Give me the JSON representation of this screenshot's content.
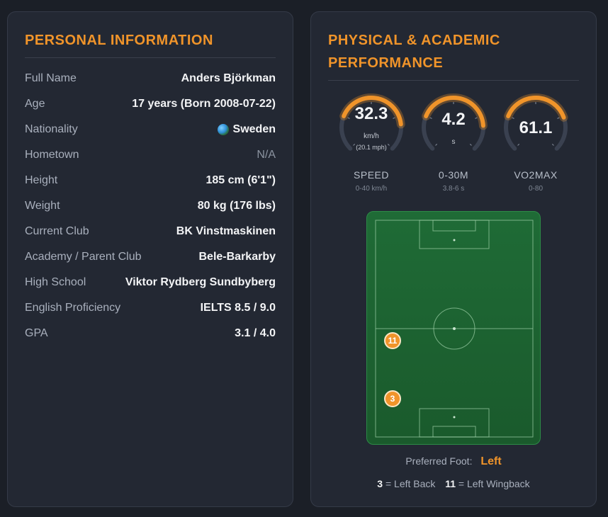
{
  "personal": {
    "title": "PERSONAL INFORMATION",
    "rows": [
      {
        "label": "Full Name",
        "value": "Anders Björkman"
      },
      {
        "label": "Age",
        "value": "17 years (Born 2008-07-22)"
      },
      {
        "label": "Nationality",
        "value": "Sweden",
        "icon": "globe-icon"
      },
      {
        "label": "Hometown",
        "value": "N/A"
      },
      {
        "label": "Height",
        "value": "185 cm (6'1\")"
      },
      {
        "label": "Weight",
        "value": "80 kg (176 lbs)"
      },
      {
        "label": "Current Club",
        "value": "BK Vinstmaskinen"
      },
      {
        "label": "Academy / Parent Club",
        "value": "Bele-Barkarby"
      },
      {
        "label": "High School",
        "value": "Viktor Rydberg Sundbyberg"
      },
      {
        "label": "English Proficiency",
        "value": "IELTS 8.5 / 9.0"
      },
      {
        "label": "GPA",
        "value": "3.1 / 4.0"
      }
    ]
  },
  "performance": {
    "title": "PHYSICAL & ACADEMIC PERFORMANCE",
    "gauges": [
      {
        "value": "32.3",
        "unit": "km/h",
        "sub": "(20.1 mph)",
        "label": "SPEED",
        "range": "0-40 km/h",
        "fill": 0.81
      },
      {
        "value": "4.2",
        "unit": "s",
        "sub": "",
        "label": "0-30M",
        "range": "3.8-6 s",
        "fill": 0.82
      },
      {
        "value": "61.1",
        "unit": "",
        "sub": "",
        "label": "VO2MAX",
        "range": "0-80",
        "fill": 0.76
      }
    ],
    "players": [
      {
        "number": "11"
      },
      {
        "number": "3"
      }
    ],
    "preferred_foot_label": "Preferred Foot:",
    "preferred_foot_value": "Left",
    "legend": [
      {
        "number": "3",
        "text": "= Left Back"
      },
      {
        "number": "11",
        "text": "= Left Wingback"
      }
    ]
  },
  "colors": {
    "accent": "#f0942a",
    "card_bg": "#232833",
    "page_bg": "#1b1f27",
    "pitch_green": "#1f6b36"
  }
}
